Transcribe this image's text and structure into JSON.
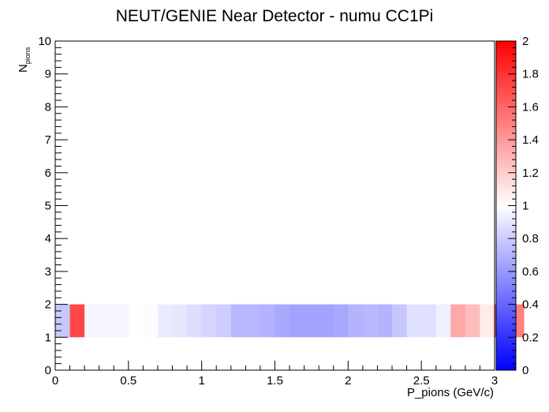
{
  "chart_data": {
    "type": "heatmap",
    "title": "NEUT/GENIE Near Detector - numu CC1Pi",
    "xlabel": "P_pions (GeV/c)",
    "ylabel": {
      "main": "N",
      "sub": "pions"
    },
    "xlim": [
      0,
      3
    ],
    "ylim": [
      0,
      10
    ],
    "x_ticks": [
      "0",
      "0.5",
      "1",
      "1.5",
      "2",
      "2.5",
      "3"
    ],
    "y_ticks": [
      "0",
      "1",
      "2",
      "3",
      "4",
      "5",
      "6",
      "7",
      "8",
      "9",
      "10"
    ],
    "colorbar": {
      "range": [
        0,
        2
      ],
      "ticks": [
        "0",
        "0.2",
        "0.4",
        "0.6",
        "0.8",
        "1",
        "1.2",
        "1.4",
        "1.6",
        "1.8",
        "2"
      ],
      "low_color": "#0000ff",
      "mid_color": "#ffffff",
      "high_color": "#ff0000"
    },
    "rows": [
      {
        "y_range": [
          1,
          2
        ],
        "x_bin_width": 0.1,
        "x_start": 0.0,
        "values": [
          0.78,
          1.72,
          0.96,
          0.96,
          0.96,
          null,
          0.99,
          0.92,
          0.9,
          0.87,
          0.83,
          0.8,
          0.72,
          0.72,
          0.7,
          0.66,
          0.64,
          0.64,
          0.64,
          0.66,
          0.7,
          0.72,
          0.7,
          0.78,
          0.88,
          0.88,
          0.94,
          1.34,
          1.26,
          1.08,
          1.62,
          1.5
        ]
      }
    ]
  }
}
